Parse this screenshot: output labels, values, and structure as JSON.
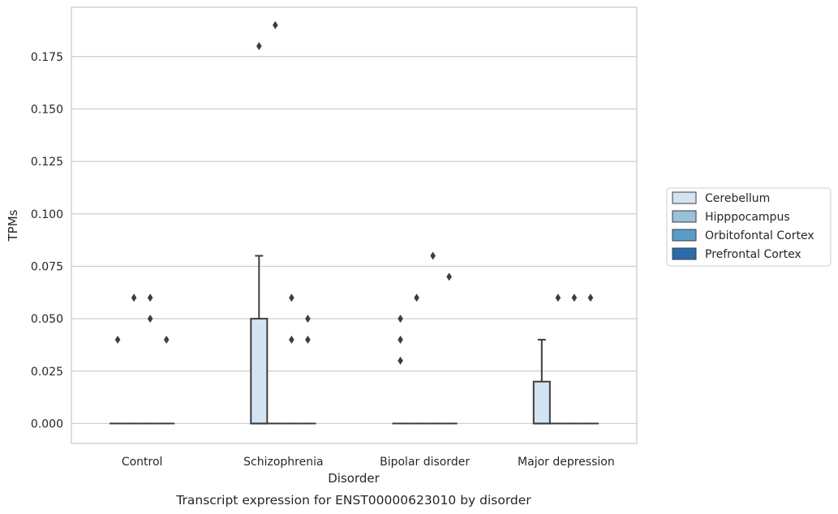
{
  "chart_data": {
    "type": "box",
    "caption": "Transcript expression for ENST00000623010 by disorder",
    "xlabel": "Disorder",
    "ylabel": "TPMs",
    "ylim": [
      -0.0095,
      0.1985
    ],
    "yticks": [
      0.0,
      0.025,
      0.05,
      0.075,
      0.1,
      0.125,
      0.15,
      0.175
    ],
    "ytick_labels": [
      "0.000",
      "0.025",
      "0.050",
      "0.075",
      "0.100",
      "0.125",
      "0.150",
      "0.175"
    ],
    "grid": "horizontal",
    "legend_position": "right",
    "categories": [
      "Control",
      "Schizophrenia",
      "Bipolar disorder",
      "Major depression"
    ],
    "series": [
      {
        "name": "Cerebellum",
        "color": "#d3e3f2",
        "boxes": [
          {
            "q1": 0,
            "median": 0,
            "q3": 0,
            "whislo": 0,
            "whishi": 0,
            "fliers": [
              0.04
            ]
          },
          {
            "q1": 0,
            "median": 0,
            "q3": 0.05,
            "whislo": 0,
            "whishi": 0.08,
            "fliers": [
              0.18
            ]
          },
          {
            "q1": 0,
            "median": 0,
            "q3": 0,
            "whislo": 0,
            "whishi": 0,
            "fliers": [
              0.03,
              0.04,
              0.05
            ]
          },
          {
            "q1": 0,
            "median": 0,
            "q3": 0.02,
            "whislo": 0,
            "whishi": 0.04,
            "fliers": []
          }
        ]
      },
      {
        "name": "Hipppocampus",
        "color": "#9ac0da",
        "boxes": [
          {
            "q1": 0,
            "median": 0,
            "q3": 0,
            "whislo": 0,
            "whishi": 0,
            "fliers": [
              0.06
            ]
          },
          {
            "q1": 0,
            "median": 0,
            "q3": 0,
            "whislo": 0,
            "whishi": 0,
            "fliers": [
              0.19
            ]
          },
          {
            "q1": 0,
            "median": 0,
            "q3": 0,
            "whislo": 0,
            "whishi": 0,
            "fliers": [
              0.06
            ]
          },
          {
            "q1": 0,
            "median": 0,
            "q3": 0,
            "whislo": 0,
            "whishi": 0,
            "fliers": [
              0.06
            ]
          }
        ]
      },
      {
        "name": "Orbitofontal Cortex",
        "color": "#5b9bc7",
        "boxes": [
          {
            "q1": 0,
            "median": 0,
            "q3": 0,
            "whislo": 0,
            "whishi": 0,
            "fliers": [
              0.05,
              0.06
            ]
          },
          {
            "q1": 0,
            "median": 0,
            "q3": 0,
            "whislo": 0,
            "whishi": 0,
            "fliers": [
              0.04,
              0.06
            ]
          },
          {
            "q1": 0,
            "median": 0,
            "q3": 0,
            "whislo": 0,
            "whishi": 0,
            "fliers": [
              0.08
            ]
          },
          {
            "q1": 0,
            "median": 0,
            "q3": 0,
            "whislo": 0,
            "whishi": 0,
            "fliers": [
              0.06
            ]
          }
        ]
      },
      {
        "name": "Prefrontal Cortex",
        "color": "#2a6bab",
        "boxes": [
          {
            "q1": 0,
            "median": 0,
            "q3": 0,
            "whislo": 0,
            "whishi": 0,
            "fliers": [
              0.04
            ]
          },
          {
            "q1": 0,
            "median": 0,
            "q3": 0,
            "whislo": 0,
            "whishi": 0,
            "fliers": [
              0.04,
              0.05
            ]
          },
          {
            "q1": 0,
            "median": 0,
            "q3": 0,
            "whislo": 0,
            "whishi": 0,
            "fliers": [
              0.07
            ]
          },
          {
            "q1": 0,
            "median": 0,
            "q3": 0,
            "whislo": 0,
            "whishi": 0,
            "fliers": [
              0.06
            ]
          }
        ]
      }
    ]
  }
}
